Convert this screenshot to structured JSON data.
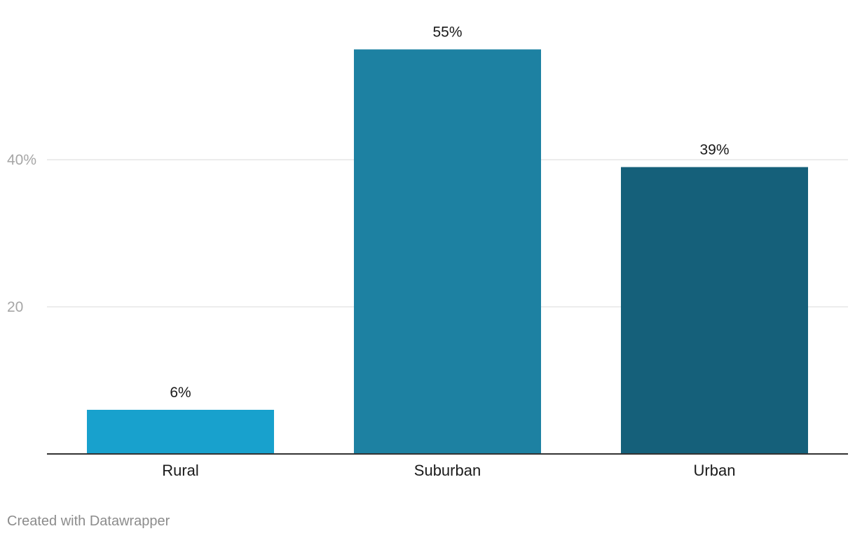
{
  "chart_data": {
    "type": "bar",
    "categories": [
      "Rural",
      "Suburban",
      "Urban"
    ],
    "values": [
      6,
      55,
      39
    ],
    "value_labels": [
      "6%",
      "55%",
      "39%"
    ],
    "bar_colors": [
      "#18a1cd",
      "#1d81a2",
      "#15607a"
    ],
    "y_ticks": [
      {
        "value": 20,
        "label": "20"
      },
      {
        "value": 40,
        "label": "40%"
      }
    ],
    "ylim": [
      0,
      55
    ],
    "grid": true,
    "title": "",
    "xlabel": "",
    "ylabel": ""
  },
  "footer": {
    "credit": "Created with Datawrapper"
  },
  "colors": {
    "gridline": "#e5e5e5",
    "baseline": "#333333",
    "tick_label": "#a6a6a6",
    "value_label": "#1a1a1a",
    "category_label": "#1a1a1a",
    "credit_text": "#8c8c8c"
  }
}
